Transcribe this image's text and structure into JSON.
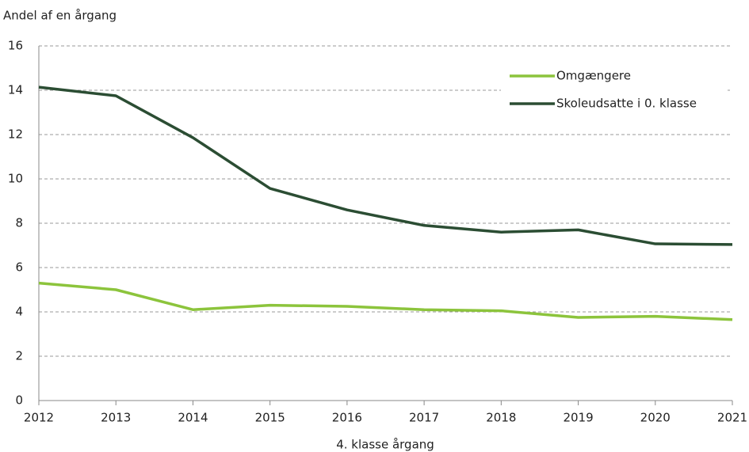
{
  "chart_data": {
    "type": "line",
    "y_axis_label": "Andel af en årgang",
    "x_axis_label": "4. klasse årgang",
    "x": [
      2012,
      2013,
      2014,
      2015,
      2016,
      2017,
      2018,
      2019,
      2020,
      2021
    ],
    "series": [
      {
        "name": "Omgængere",
        "color": "#8cc43c",
        "values": [
          5.3,
          5.0,
          4.1,
          4.3,
          4.25,
          4.1,
          4.05,
          3.75,
          3.8,
          3.65
        ]
      },
      {
        "name": "Skoleudsatte i 0. klasse",
        "color": "#2b4d33",
        "values": [
          14.14,
          13.75,
          11.86,
          9.57,
          8.6,
          7.9,
          7.6,
          7.7,
          7.07,
          7.04
        ]
      }
    ],
    "xlim": [
      2012,
      2021
    ],
    "xticks": [
      2012,
      2013,
      2014,
      2015,
      2016,
      2017,
      2018,
      2019,
      2020,
      2021
    ],
    "ylim": [
      0,
      16
    ],
    "yticks": [
      0,
      2,
      4,
      6,
      8,
      10,
      12,
      14,
      16
    ],
    "grid": true,
    "legend": "upper-right"
  }
}
